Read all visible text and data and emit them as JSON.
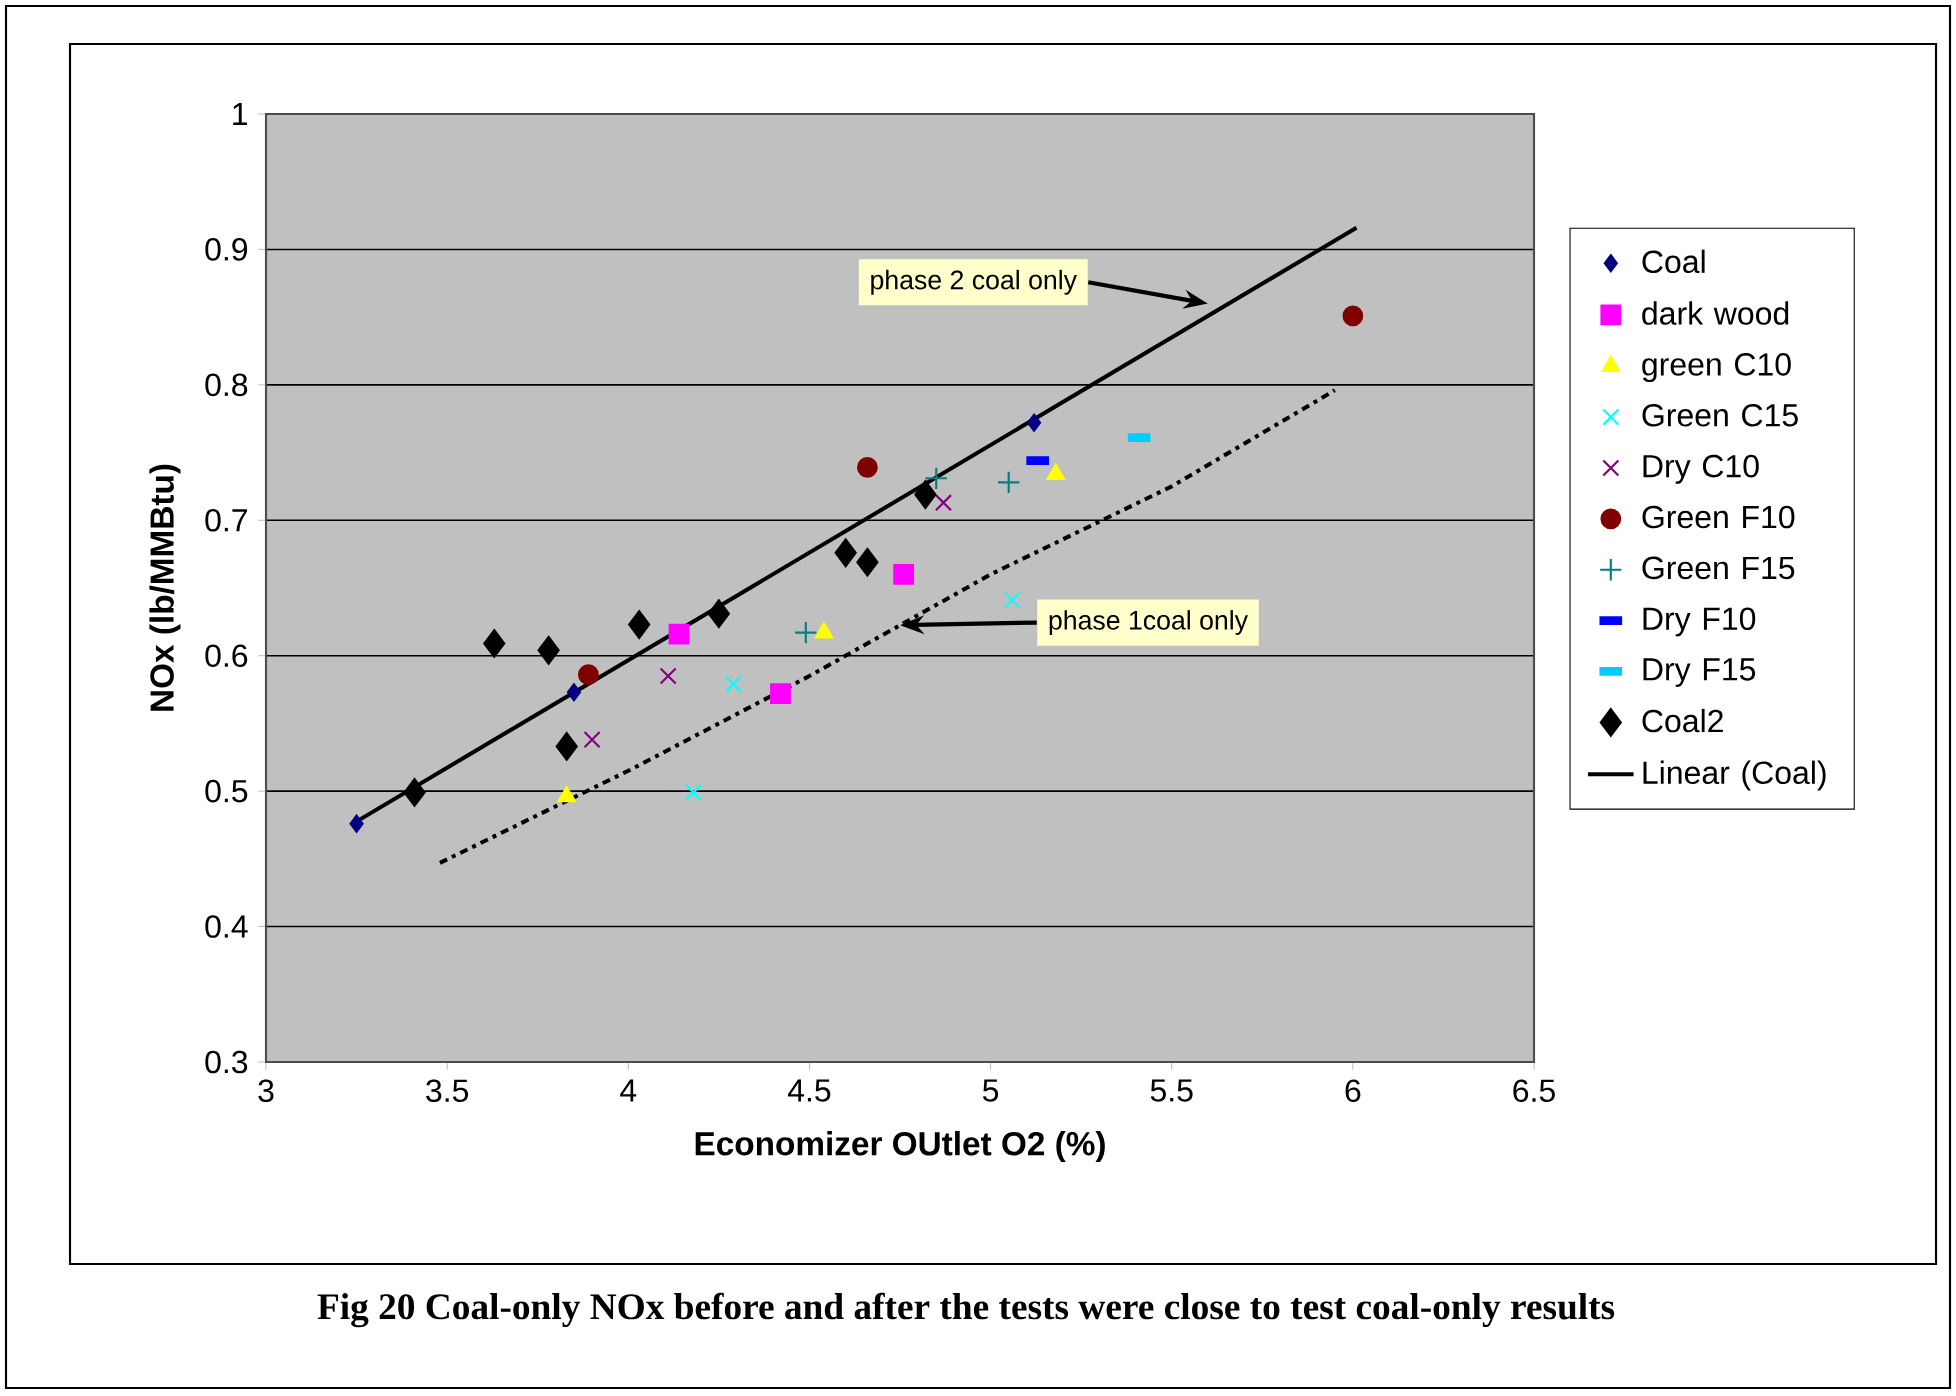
{
  "chart_data": {
    "type": "scatter",
    "xlabel": "Economizer OUtlet O2 (%)",
    "ylabel": "NOx (lb/MMBtu)",
    "xlim": [
      3,
      6.5
    ],
    "xticks": [
      3,
      3.5,
      4,
      4.5,
      5,
      5.5,
      6,
      6.5
    ],
    "ylim": [
      0.3,
      1
    ],
    "yticks": [
      0.3,
      0.4,
      0.5,
      0.6,
      0.7,
      0.8,
      0.9,
      1
    ],
    "grid": "y",
    "legend": "right",
    "series": [
      {
        "name": "Coal",
        "color": "#000080",
        "marker": "diamond",
        "x": [
          3.25,
          3.85,
          5.12
        ],
        "values": [
          0.476,
          0.573,
          0.772
        ]
      },
      {
        "name": "dark wood",
        "color": "#ff00ff",
        "marker": "square",
        "x": [
          4.14,
          4.42,
          4.76
        ],
        "values": [
          0.616,
          0.572,
          0.66
        ]
      },
      {
        "name": "green C10",
        "color": "#ffff00",
        "marker": "triangle",
        "x": [
          3.83,
          4.54,
          5.18
        ],
        "values": [
          0.496,
          0.617,
          0.734
        ]
      },
      {
        "name": "Green C15",
        "color": "#00ffff",
        "marker": "cross",
        "x": [
          4.18,
          4.29,
          5.06
        ],
        "values": [
          0.499,
          0.579,
          0.641
        ]
      },
      {
        "name": "Dry C10",
        "color": "#800080",
        "marker": "cross",
        "x": [
          3.9,
          4.11,
          4.87
        ],
        "values": [
          0.538,
          0.585,
          0.713
        ]
      },
      {
        "name": "Green F10",
        "color": "#800000",
        "marker": "circle",
        "x": [
          3.89,
          4.66,
          6.0
        ],
        "values": [
          0.586,
          0.739,
          0.851
        ]
      },
      {
        "name": "Green F15",
        "color": "#008080",
        "marker": "plus",
        "x": [
          4.49,
          4.85,
          5.05
        ],
        "values": [
          0.617,
          0.731,
          0.728
        ]
      },
      {
        "name": "Dry F10",
        "color": "#0000ff",
        "marker": "square",
        "x": [
          5.13
        ],
        "values": [
          0.744
        ]
      },
      {
        "name": "Dry F15",
        "color": "#00ccff",
        "marker": "square",
        "x": [
          5.41
        ],
        "values": [
          0.761
        ]
      },
      {
        "name": "Coal2",
        "color": "#000000",
        "marker": "diamond",
        "x": [
          3.41,
          3.63,
          3.78,
          3.83,
          4.03,
          4.25,
          4.6,
          4.66,
          4.82
        ],
        "values": [
          0.499,
          0.609,
          0.604,
          0.533,
          0.623,
          0.631,
          0.676,
          0.669,
          0.719
        ]
      },
      {
        "name": "Linear (Coal)",
        "type": "line",
        "color": "#000000",
        "marker": "none",
        "line_style": "solid",
        "x": [
          3.24,
          6.01
        ],
        "values": [
          0.476,
          0.916
        ]
      },
      {
        "type": "line",
        "color": "#000000",
        "marker": "none",
        "line_style": "dashed",
        "x": [
          3.48,
          4.0,
          4.5,
          5.0,
          5.5,
          5.95
        ],
        "values": [
          0.447,
          0.515,
          0.585,
          0.66,
          0.725,
          0.796
        ]
      }
    ],
    "annotations": [
      {
        "text": "phase 2 coal only",
        "x": 5.6,
        "y": 0.86
      },
      "phase 1coal only",
      "Fig 20   Coal-only NOx before and after the tests were close to test coal-only results"
    ]
  }
}
